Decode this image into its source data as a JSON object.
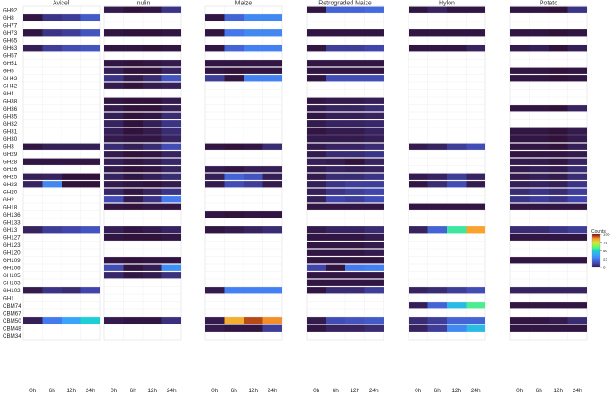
{
  "chart_data": {
    "type": "heatmap",
    "panels": [
      "Avicell",
      "Inulin",
      "Maize",
      "Retrograded Maize",
      "Hylon",
      "Potato"
    ],
    "x": [
      "0h",
      "6h",
      "12h",
      "24h"
    ],
    "rows": [
      "GH92",
      "GH8",
      "GH77",
      "GH73",
      "GH65",
      "GH63",
      "GH57",
      "GH51",
      "GH5",
      "GH43",
      "GH42",
      "GH4",
      "GH38",
      "GH36",
      "GH35",
      "GH32",
      "GH31",
      "GH30",
      "GH3",
      "GH29",
      "GH28",
      "GH26",
      "GH25",
      "GH23",
      "GH20",
      "GH2",
      "GH18",
      "GH136",
      "GH133",
      "GH13",
      "GH127",
      "GH123",
      "GH120",
      "GH109",
      "GH106",
      "GH105",
      "GH103",
      "GH102",
      "GH1",
      "CBM74",
      "CBM67",
      "CBM50",
      "CBM48",
      "CBM34"
    ],
    "legend": {
      "title": "Counts",
      "ticks": [
        100,
        75,
        50,
        25,
        0
      ],
      "range": [
        0,
        100
      ]
    },
    "cells": {
      "Avicell": {
        "GH8": [
          1,
          8,
          10,
          18
        ],
        "GH73": [
          1,
          8,
          10,
          16
        ],
        "GH63": [
          3,
          10,
          14,
          16
        ],
        "GH3": [
          1,
          3,
          3,
          3
        ],
        "GH28": [
          1,
          1,
          1,
          1
        ],
        "GH25": [
          3,
          4,
          0,
          0
        ],
        "GH23": [
          4,
          30,
          0,
          0
        ],
        "GH13": [
          4,
          10,
          12,
          16
        ],
        "GH102": [
          2,
          8,
          6,
          12
        ],
        "CBM50": [
          3,
          26,
          38,
          50
        ]
      },
      "Inulin": {
        "GH92": [
          2,
          0,
          1,
          8
        ],
        "GH73": [
          1,
          0,
          0,
          1
        ],
        "GH63": [
          1,
          1,
          0,
          1
        ],
        "GH51": [
          1,
          0,
          1,
          2
        ],
        "GH5": [
          3,
          0,
          0,
          4
        ],
        "GH43": [
          8,
          2,
          6,
          16
        ],
        "GH42": [
          2,
          0,
          2,
          3
        ],
        "GH38": [
          1,
          0,
          0,
          2
        ],
        "GH36": [
          2,
          0,
          0,
          3
        ],
        "GH35": [
          3,
          0,
          1,
          6
        ],
        "GH32": [
          4,
          0,
          3,
          8
        ],
        "GH31": [
          3,
          0,
          2,
          6
        ],
        "GH30": [
          2,
          1,
          1,
          4
        ],
        "GH3": [
          6,
          3,
          6,
          14
        ],
        "GH29": [
          2,
          0,
          1,
          4
        ],
        "GH28": [
          3,
          1,
          2,
          5
        ],
        "GH26": [
          2,
          0,
          1,
          4
        ],
        "GH25": [
          4,
          1,
          3,
          6
        ],
        "GH23": [
          2,
          1,
          0,
          2
        ],
        "GH20": [
          5,
          1,
          4,
          8
        ],
        "GH2": [
          14,
          2,
          8,
          26
        ],
        "GH18": [
          1,
          0,
          1,
          1
        ],
        "GH13": [
          3,
          1,
          2,
          4
        ],
        "GH127": [
          1,
          0,
          0,
          1
        ],
        "GH109": [
          1,
          0,
          1,
          1
        ],
        "GH106": [
          14,
          1,
          3,
          32
        ],
        "GH105": [
          5,
          1,
          2,
          7
        ],
        "CBM50": [
          2,
          1,
          1,
          7
        ]
      },
      "Maize": {
        "GH8": [
          1,
          20,
          30,
          30
        ],
        "GH73": [
          1,
          25,
          30,
          30
        ],
        "GH63": [
          1,
          20,
          28,
          28
        ],
        "GH51": [
          1,
          1,
          1,
          1
        ],
        "GH5": [
          1,
          0,
          1,
          1
        ],
        "GH43": [
          10,
          1,
          28,
          28
        ],
        "GH3": [
          1,
          0,
          1,
          6
        ],
        "GH26": [
          2,
          1,
          3,
          3
        ],
        "GH25": [
          3,
          20,
          16,
          3
        ],
        "GH23": [
          2,
          14,
          10,
          2
        ],
        "GH136": [
          1,
          0,
          1,
          1
        ],
        "GH13": [
          1,
          2,
          4,
          6
        ],
        "GH102": [
          2,
          28,
          28,
          28
        ],
        "CBM50": [
          2,
          84,
          94,
          88
        ],
        "CBM48": [
          2,
          1,
          1,
          10
        ]
      },
      "Retrograded Maize": {
        "GH92": [
          1,
          20,
          20,
          22
        ],
        "GH73": [
          1,
          1,
          1,
          1
        ],
        "GH63": [
          1,
          10,
          10,
          12
        ],
        "GH51": [
          1,
          1,
          1,
          1
        ],
        "GH5": [
          1,
          1,
          1,
          1
        ],
        "GH43": [
          1,
          14,
          14,
          14
        ],
        "GH38": [
          1,
          2,
          2,
          3
        ],
        "GH36": [
          2,
          4,
          4,
          6
        ],
        "GH35": [
          1,
          3,
          3,
          4
        ],
        "GH32": [
          2,
          4,
          4,
          5
        ],
        "GH31": [
          1,
          2,
          2,
          4
        ],
        "GH30": [
          2,
          2,
          2,
          3
        ],
        "GH3": [
          2,
          4,
          4,
          6
        ],
        "GH29": [
          2,
          6,
          6,
          8
        ],
        "GH28": [
          3,
          2,
          0,
          4
        ],
        "GH26": [
          2,
          4,
          3,
          4
        ],
        "GH25": [
          2,
          6,
          6,
          8
        ],
        "GH23": [
          3,
          8,
          10,
          10
        ],
        "GH20": [
          3,
          8,
          10,
          12
        ],
        "GH2": [
          3,
          12,
          10,
          14
        ],
        "GH18": [
          1,
          1,
          1,
          1
        ],
        "GH13": [
          2,
          4,
          4,
          6
        ],
        "GH127": [
          1,
          1,
          1,
          2
        ],
        "GH123": [
          1,
          1,
          1,
          2
        ],
        "GH120": [
          1,
          1,
          1,
          2
        ],
        "GH109": [
          1,
          1,
          1,
          1
        ],
        "GH106": [
          12,
          1,
          26,
          28
        ],
        "GH105": [
          1,
          1,
          1,
          1
        ],
        "GH103": [
          1,
          1,
          1,
          1
        ],
        "GH102": [
          1,
          6,
          6,
          10
        ],
        "CBM50": [
          2,
          14,
          16,
          18
        ],
        "CBM48": [
          1,
          4,
          4,
          6
        ]
      },
      "Hylon": {
        "GH92": [
          1,
          4,
          1,
          1
        ],
        "GH73": [
          1,
          1,
          1,
          1
        ],
        "GH63": [
          1,
          1,
          1,
          4
        ],
        "GH3": [
          2,
          4,
          10,
          14
        ],
        "GH25": [
          2,
          4,
          10,
          4
        ],
        "GH23": [
          1,
          6,
          14,
          2
        ],
        "GH18": [
          1,
          1,
          1,
          1
        ],
        "GH13": [
          4,
          20,
          56,
          86
        ],
        "GH102": [
          4,
          6,
          10,
          14
        ],
        "CBM74": [
          3,
          20,
          44,
          58
        ],
        "CBM50": [
          6,
          10,
          20,
          20
        ],
        "CBM48": [
          4,
          10,
          30,
          44
        ]
      },
      "Potato": {
        "GH92": [
          1,
          1,
          0,
          8
        ],
        "GH73": [
          1,
          1,
          0,
          1
        ],
        "GH63": [
          2,
          3,
          0,
          3
        ],
        "GH5": [
          1,
          1,
          0,
          1
        ],
        "GH43": [
          1,
          1,
          0,
          1
        ],
        "GH36": [
          1,
          1,
          0,
          4
        ],
        "GH31": [
          1,
          1,
          0,
          2
        ],
        "GH30": [
          1,
          1,
          0,
          2
        ],
        "GH3": [
          1,
          1,
          0,
          3
        ],
        "GH29": [
          1,
          1,
          1,
          2
        ],
        "GH28": [
          2,
          2,
          1,
          4
        ],
        "GH26": [
          2,
          3,
          2,
          6
        ],
        "GH25": [
          2,
          3,
          2,
          6
        ],
        "GH23": [
          3,
          4,
          3,
          8
        ],
        "GH20": [
          6,
          8,
          6,
          10
        ],
        "GH2": [
          8,
          10,
          8,
          12
        ],
        "GH18": [
          1,
          1,
          1,
          1
        ],
        "GH13": [
          6,
          6,
          8,
          10
        ],
        "GH127": [
          1,
          1,
          1,
          1
        ],
        "GH109": [
          1,
          1,
          1,
          1
        ],
        "GH102": [
          4,
          4,
          4,
          4
        ],
        "CBM74": [
          1,
          1,
          1,
          1
        ],
        "CBM50": [
          1,
          1,
          2,
          6
        ],
        "CBM48": [
          1,
          1,
          1,
          1
        ]
      }
    }
  }
}
